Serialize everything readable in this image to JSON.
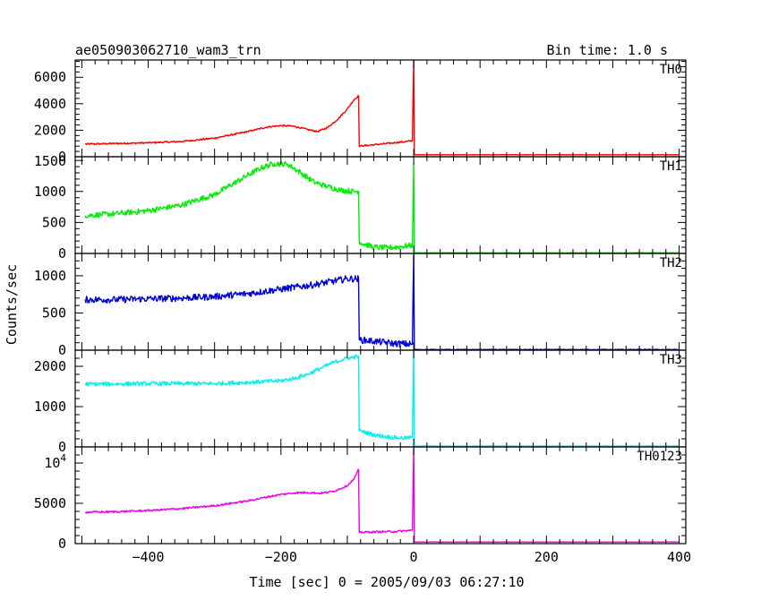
{
  "chart_data": {
    "type": "line",
    "title": "ae050903062710_wam3_trn",
    "subtitle": "Bin time: 1.0 s",
    "xlabel": "Time [sec] 0 = 2005/09/03 06:27:10",
    "ylabel": "Counts/sec",
    "xlim": [
      -510,
      410
    ],
    "x_ticks": [
      -400,
      -200,
      0,
      200,
      400
    ],
    "x_tick_labels": [
      "−400",
      "−200",
      "0",
      "200",
      "400"
    ],
    "grid": false,
    "panels": [
      {
        "name": "TH0",
        "color": "#ff0000",
        "ylim": [
          0,
          7300
        ],
        "y_ticks": [
          0,
          2000,
          4000,
          6000
        ],
        "y_tick_labels": [
          "0",
          "2000",
          "4000",
          "6000"
        ],
        "noise": 60,
        "points": [
          [
            -495,
            950
          ],
          [
            -450,
            1000
          ],
          [
            -400,
            1050
          ],
          [
            -350,
            1150
          ],
          [
            -300,
            1400
          ],
          [
            -250,
            1900
          ],
          [
            -220,
            2250
          ],
          [
            -200,
            2350
          ],
          [
            -180,
            2300
          ],
          [
            -160,
            2050
          ],
          [
            -145,
            1900
          ],
          [
            -130,
            2200
          ],
          [
            -115,
            2800
          ],
          [
            -100,
            3600
          ],
          [
            -90,
            4300
          ],
          [
            -83,
            4600
          ],
          [
            -82,
            800
          ],
          [
            -60,
            900
          ],
          [
            -30,
            1050
          ],
          [
            -2,
            1200
          ],
          [
            0,
            7300
          ],
          [
            1,
            150
          ],
          [
            400,
            150
          ]
        ]
      },
      {
        "name": "TH1",
        "color": "#00ee00",
        "ylim": [
          0,
          1560
        ],
        "y_ticks": [
          0,
          500,
          1000,
          1500
        ],
        "y_tick_labels": [
          "0",
          "500",
          "1000",
          "1500"
        ],
        "noise": 45,
        "points": [
          [
            -495,
            610
          ],
          [
            -450,
            640
          ],
          [
            -400,
            690
          ],
          [
            -350,
            780
          ],
          [
            -300,
            950
          ],
          [
            -260,
            1200
          ],
          [
            -230,
            1380
          ],
          [
            -210,
            1450
          ],
          [
            -190,
            1440
          ],
          [
            -170,
            1300
          ],
          [
            -150,
            1150
          ],
          [
            -130,
            1080
          ],
          [
            -110,
            1020
          ],
          [
            -90,
            1000
          ],
          [
            -83,
            1000
          ],
          [
            -82,
            180
          ],
          [
            -60,
            100
          ],
          [
            -40,
            90
          ],
          [
            -20,
            110
          ],
          [
            -2,
            130
          ],
          [
            0,
            1450
          ],
          [
            1,
            10
          ],
          [
            400,
            10
          ]
        ]
      },
      {
        "name": "TH2",
        "color": "#0000dd",
        "ylim": [
          0,
          1300
        ],
        "y_ticks": [
          0,
          500,
          1000
        ],
        "y_tick_labels": [
          "0",
          "500",
          "1000"
        ],
        "noise": 45,
        "points": [
          [
            -495,
            680
          ],
          [
            -450,
            680
          ],
          [
            -400,
            690
          ],
          [
            -350,
            700
          ],
          [
            -300,
            720
          ],
          [
            -250,
            760
          ],
          [
            -200,
            820
          ],
          [
            -150,
            880
          ],
          [
            -120,
            930
          ],
          [
            -100,
            960
          ],
          [
            -83,
            960
          ],
          [
            -82,
            140
          ],
          [
            -60,
            120
          ],
          [
            -30,
            90
          ],
          [
            -2,
            80
          ],
          [
            0,
            1300
          ],
          [
            1,
            8
          ],
          [
            400,
            8
          ]
        ]
      },
      {
        "name": "TH3",
        "color": "#00f0f0",
        "ylim": [
          0,
          2400
        ],
        "y_ticks": [
          0,
          1000,
          2000
        ],
        "y_tick_labels": [
          "0",
          "1000",
          "2000"
        ],
        "noise": 50,
        "points": [
          [
            -495,
            1560
          ],
          [
            -450,
            1560
          ],
          [
            -400,
            1570
          ],
          [
            -350,
            1570
          ],
          [
            -300,
            1570
          ],
          [
            -250,
            1600
          ],
          [
            -200,
            1640
          ],
          [
            -180,
            1700
          ],
          [
            -160,
            1800
          ],
          [
            -140,
            1950
          ],
          [
            -120,
            2100
          ],
          [
            -100,
            2200
          ],
          [
            -83,
            2250
          ],
          [
            -82,
            400
          ],
          [
            -60,
            300
          ],
          [
            -40,
            250
          ],
          [
            -20,
            220
          ],
          [
            -2,
            230
          ],
          [
            0,
            2400
          ],
          [
            1,
            20
          ],
          [
            400,
            20
          ]
        ]
      },
      {
        "name": "TH0123",
        "color": "#ee00ee",
        "ylim": [
          0,
          12000
        ],
        "y_ticks": [
          0,
          5000,
          10000
        ],
        "y_tick_labels": [
          "0",
          "5000",
          "10^4"
        ],
        "noise": 120,
        "points": [
          [
            -495,
            3900
          ],
          [
            -450,
            3950
          ],
          [
            -400,
            4100
          ],
          [
            -350,
            4350
          ],
          [
            -300,
            4700
          ],
          [
            -250,
            5300
          ],
          [
            -220,
            5800
          ],
          [
            -200,
            6100
          ],
          [
            -180,
            6300
          ],
          [
            -160,
            6350
          ],
          [
            -140,
            6250
          ],
          [
            -120,
            6500
          ],
          [
            -100,
            7200
          ],
          [
            -90,
            8000
          ],
          [
            -83,
            9200
          ],
          [
            -82,
            1400
          ],
          [
            -60,
            1450
          ],
          [
            -30,
            1500
          ],
          [
            -2,
            1650
          ],
          [
            0,
            12000
          ],
          [
            1,
            200
          ],
          [
            400,
            200
          ]
        ]
      }
    ]
  }
}
